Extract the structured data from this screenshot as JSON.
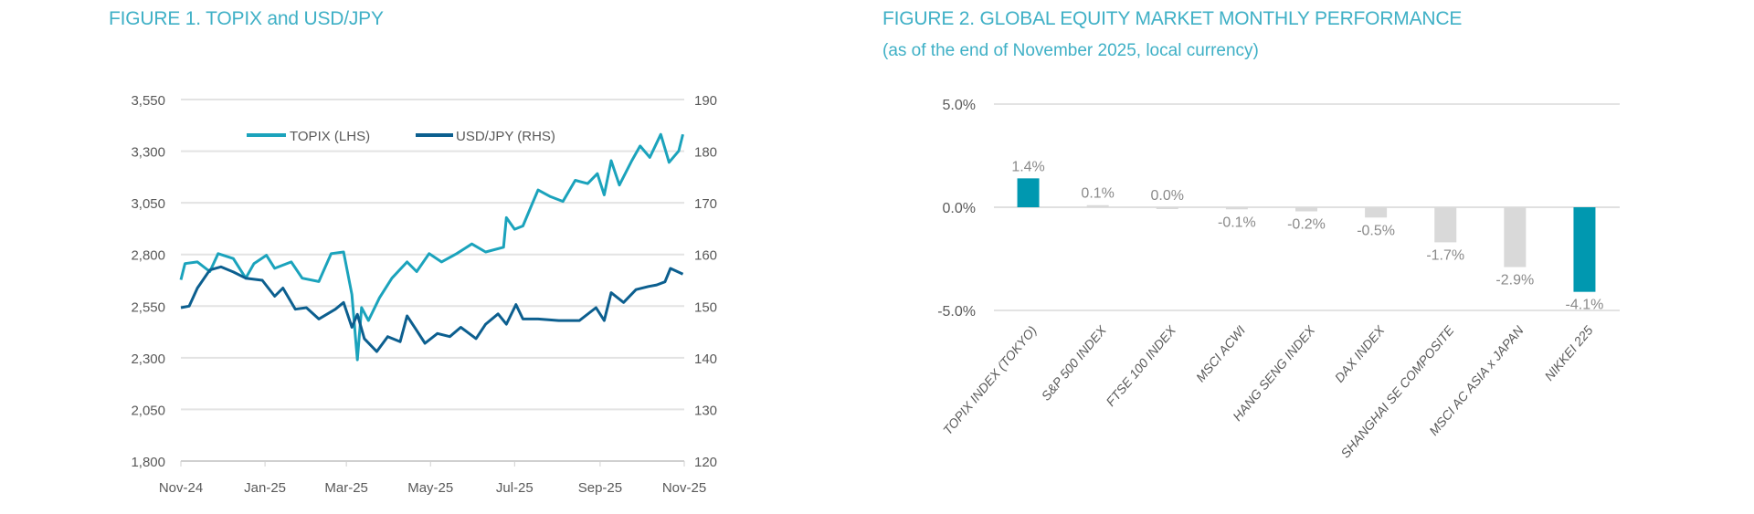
{
  "chart_data": [
    {
      "type": "line",
      "title": "FIGURE 1. TOPIX and USD/JPY",
      "x_tick_labels": [
        "Nov-24",
        "Jan-25",
        "Mar-25",
        "May-25",
        "Jul-25",
        "Sep-25",
        "Nov-25"
      ],
      "x_ticks": [
        "2024-11-01",
        "2025-01-01",
        "2025-03-01",
        "2025-05-01",
        "2025-07-01",
        "2025-09-01",
        "2025-11-01"
      ],
      "y_left": {
        "min": 1800,
        "max": 3550,
        "ticks": [
          1800,
          2050,
          2300,
          2550,
          2800,
          3050,
          3300,
          3550
        ],
        "tick_labels": [
          "1,800",
          "2,050",
          "2,300",
          "2,550",
          "2,800",
          "3,050",
          "3,300",
          "3,550"
        ]
      },
      "y_right": {
        "min": 120,
        "max": 190,
        "ticks": [
          120,
          130,
          140,
          150,
          160,
          170,
          180,
          190
        ],
        "tick_labels": [
          "120",
          "130",
          "140",
          "150",
          "160",
          "170",
          "180",
          "190"
        ]
      },
      "grid": true,
      "legend_position": "top-center",
      "series": [
        {
          "name": "TOPIX (LHS)",
          "axis": "left",
          "color": "#1ba3bc",
          "x": [
            "2024-11-01",
            "2024-11-04",
            "2024-11-13",
            "2024-11-22",
            "2024-11-28",
            "2024-12-09",
            "2024-12-18",
            "2024-12-24",
            "2025-01-02",
            "2025-01-08",
            "2025-01-20",
            "2025-01-28",
            "2025-02-09",
            "2025-02-18",
            "2025-02-27",
            "2025-03-05",
            "2025-03-09",
            "2025-03-12",
            "2025-03-17",
            "2025-03-25",
            "2025-04-03",
            "2025-04-14",
            "2025-04-21",
            "2025-04-30",
            "2025-05-09",
            "2025-05-20",
            "2025-05-31",
            "2025-06-10",
            "2025-06-23",
            "2025-06-25",
            "2025-07-01",
            "2025-07-07",
            "2025-07-13",
            "2025-07-18",
            "2025-07-27",
            "2025-08-05",
            "2025-08-14",
            "2025-08-23",
            "2025-08-30",
            "2025-09-04",
            "2025-09-09",
            "2025-09-15",
            "2025-09-24",
            "2025-09-30",
            "2025-10-07",
            "2025-10-15",
            "2025-10-21",
            "2025-10-28",
            "2025-10-31"
          ],
          "values": [
            2677,
            2756,
            2764,
            2717,
            2804,
            2780,
            2685,
            2756,
            2796,
            2733,
            2764,
            2685,
            2669,
            2804,
            2812,
            2606,
            2290,
            2543,
            2480,
            2590,
            2685,
            2764,
            2717,
            2804,
            2764,
            2804,
            2851,
            2812,
            2835,
            2978,
            2922,
            2938,
            3033,
            3112,
            3080,
            3057,
            3159,
            3143,
            3191,
            3088,
            3254,
            3136,
            3254,
            3325,
            3270,
            3381,
            3246,
            3301,
            3381
          ]
        },
        {
          "name": "USD/JPY (RHS)",
          "axis": "right",
          "color": "#0c5f8f",
          "x": [
            "2024-11-01",
            "2024-11-07",
            "2024-11-13",
            "2024-11-22",
            "2024-11-30",
            "2024-12-09",
            "2024-12-18",
            "2024-12-30",
            "2025-01-08",
            "2025-01-14",
            "2025-01-23",
            "2025-01-31",
            "2025-02-09",
            "2025-02-21",
            "2025-02-27",
            "2025-03-05",
            "2025-03-09",
            "2025-03-14",
            "2025-03-23",
            "2025-03-31",
            "2025-04-09",
            "2025-04-14",
            "2025-04-21",
            "2025-04-27",
            "2025-05-06",
            "2025-05-15",
            "2025-05-23",
            "2025-06-03",
            "2025-06-10",
            "2025-06-19",
            "2025-06-25",
            "2025-07-02",
            "2025-07-07",
            "2025-07-18",
            "2025-08-02",
            "2025-08-17",
            "2025-08-29",
            "2025-09-04",
            "2025-09-09",
            "2025-09-18",
            "2025-09-27",
            "2025-10-06",
            "2025-10-12",
            "2025-10-18",
            "2025-10-22",
            "2025-10-31"
          ],
          "values": [
            149.7,
            150.0,
            153.5,
            157.0,
            157.6,
            156.6,
            155.4,
            155.0,
            151.9,
            153.5,
            149.4,
            149.7,
            147.5,
            149.4,
            150.7,
            145.9,
            148.4,
            143.7,
            141.2,
            144.1,
            143.1,
            148.1,
            145.3,
            142.8,
            144.7,
            144.1,
            145.9,
            143.7,
            146.5,
            148.5,
            146.5,
            150.3,
            147.5,
            147.5,
            147.2,
            147.2,
            149.7,
            147.2,
            152.6,
            150.7,
            153.2,
            153.8,
            154.1,
            154.7,
            157.3,
            156.2
          ]
        }
      ]
    },
    {
      "type": "bar",
      "title": "FIGURE 2. GLOBAL EQUITY MARKET MONTHLY PERFORMANCE",
      "subtitle": "(as of the end of November 2025, local currency)",
      "categories": [
        "TOPIX INDEX (TOKYO)",
        "S&P 500 INDEX",
        "FTSE 100 INDEX",
        "MSCI ACWI",
        "HANG SENG INDEX",
        "DAX INDEX",
        "SHANGHAI SE COMPOSITE",
        "MSCI AC ASIA x JAPAN",
        "NIKKEI 225"
      ],
      "values": [
        1.4,
        0.1,
        0.0,
        -0.1,
        -0.2,
        -0.5,
        -1.7,
        -2.9,
        -4.1
      ],
      "data_labels": [
        "1.4%",
        "0.1%",
        "0.0%",
        "-0.1%",
        "-0.2%",
        "-0.5%",
        "-1.7%",
        "-2.9%",
        "-4.1%"
      ],
      "highlight_colors": [
        "#0098b0",
        "#d9d9d9",
        "#d9d9d9",
        "#d9d9d9",
        "#d9d9d9",
        "#d9d9d9",
        "#d9d9d9",
        "#d9d9d9",
        "#0098b0"
      ],
      "ylim": [
        -5,
        5
      ],
      "y_ticks": [
        -5,
        0,
        5
      ],
      "y_tick_labels": [
        "-5.0%",
        "0.0%",
        "5.0%"
      ],
      "grid": true
    }
  ],
  "colors": {
    "title": "#3fb0c6",
    "axis_text": "#595959",
    "gridline": "#e3e3e3"
  }
}
